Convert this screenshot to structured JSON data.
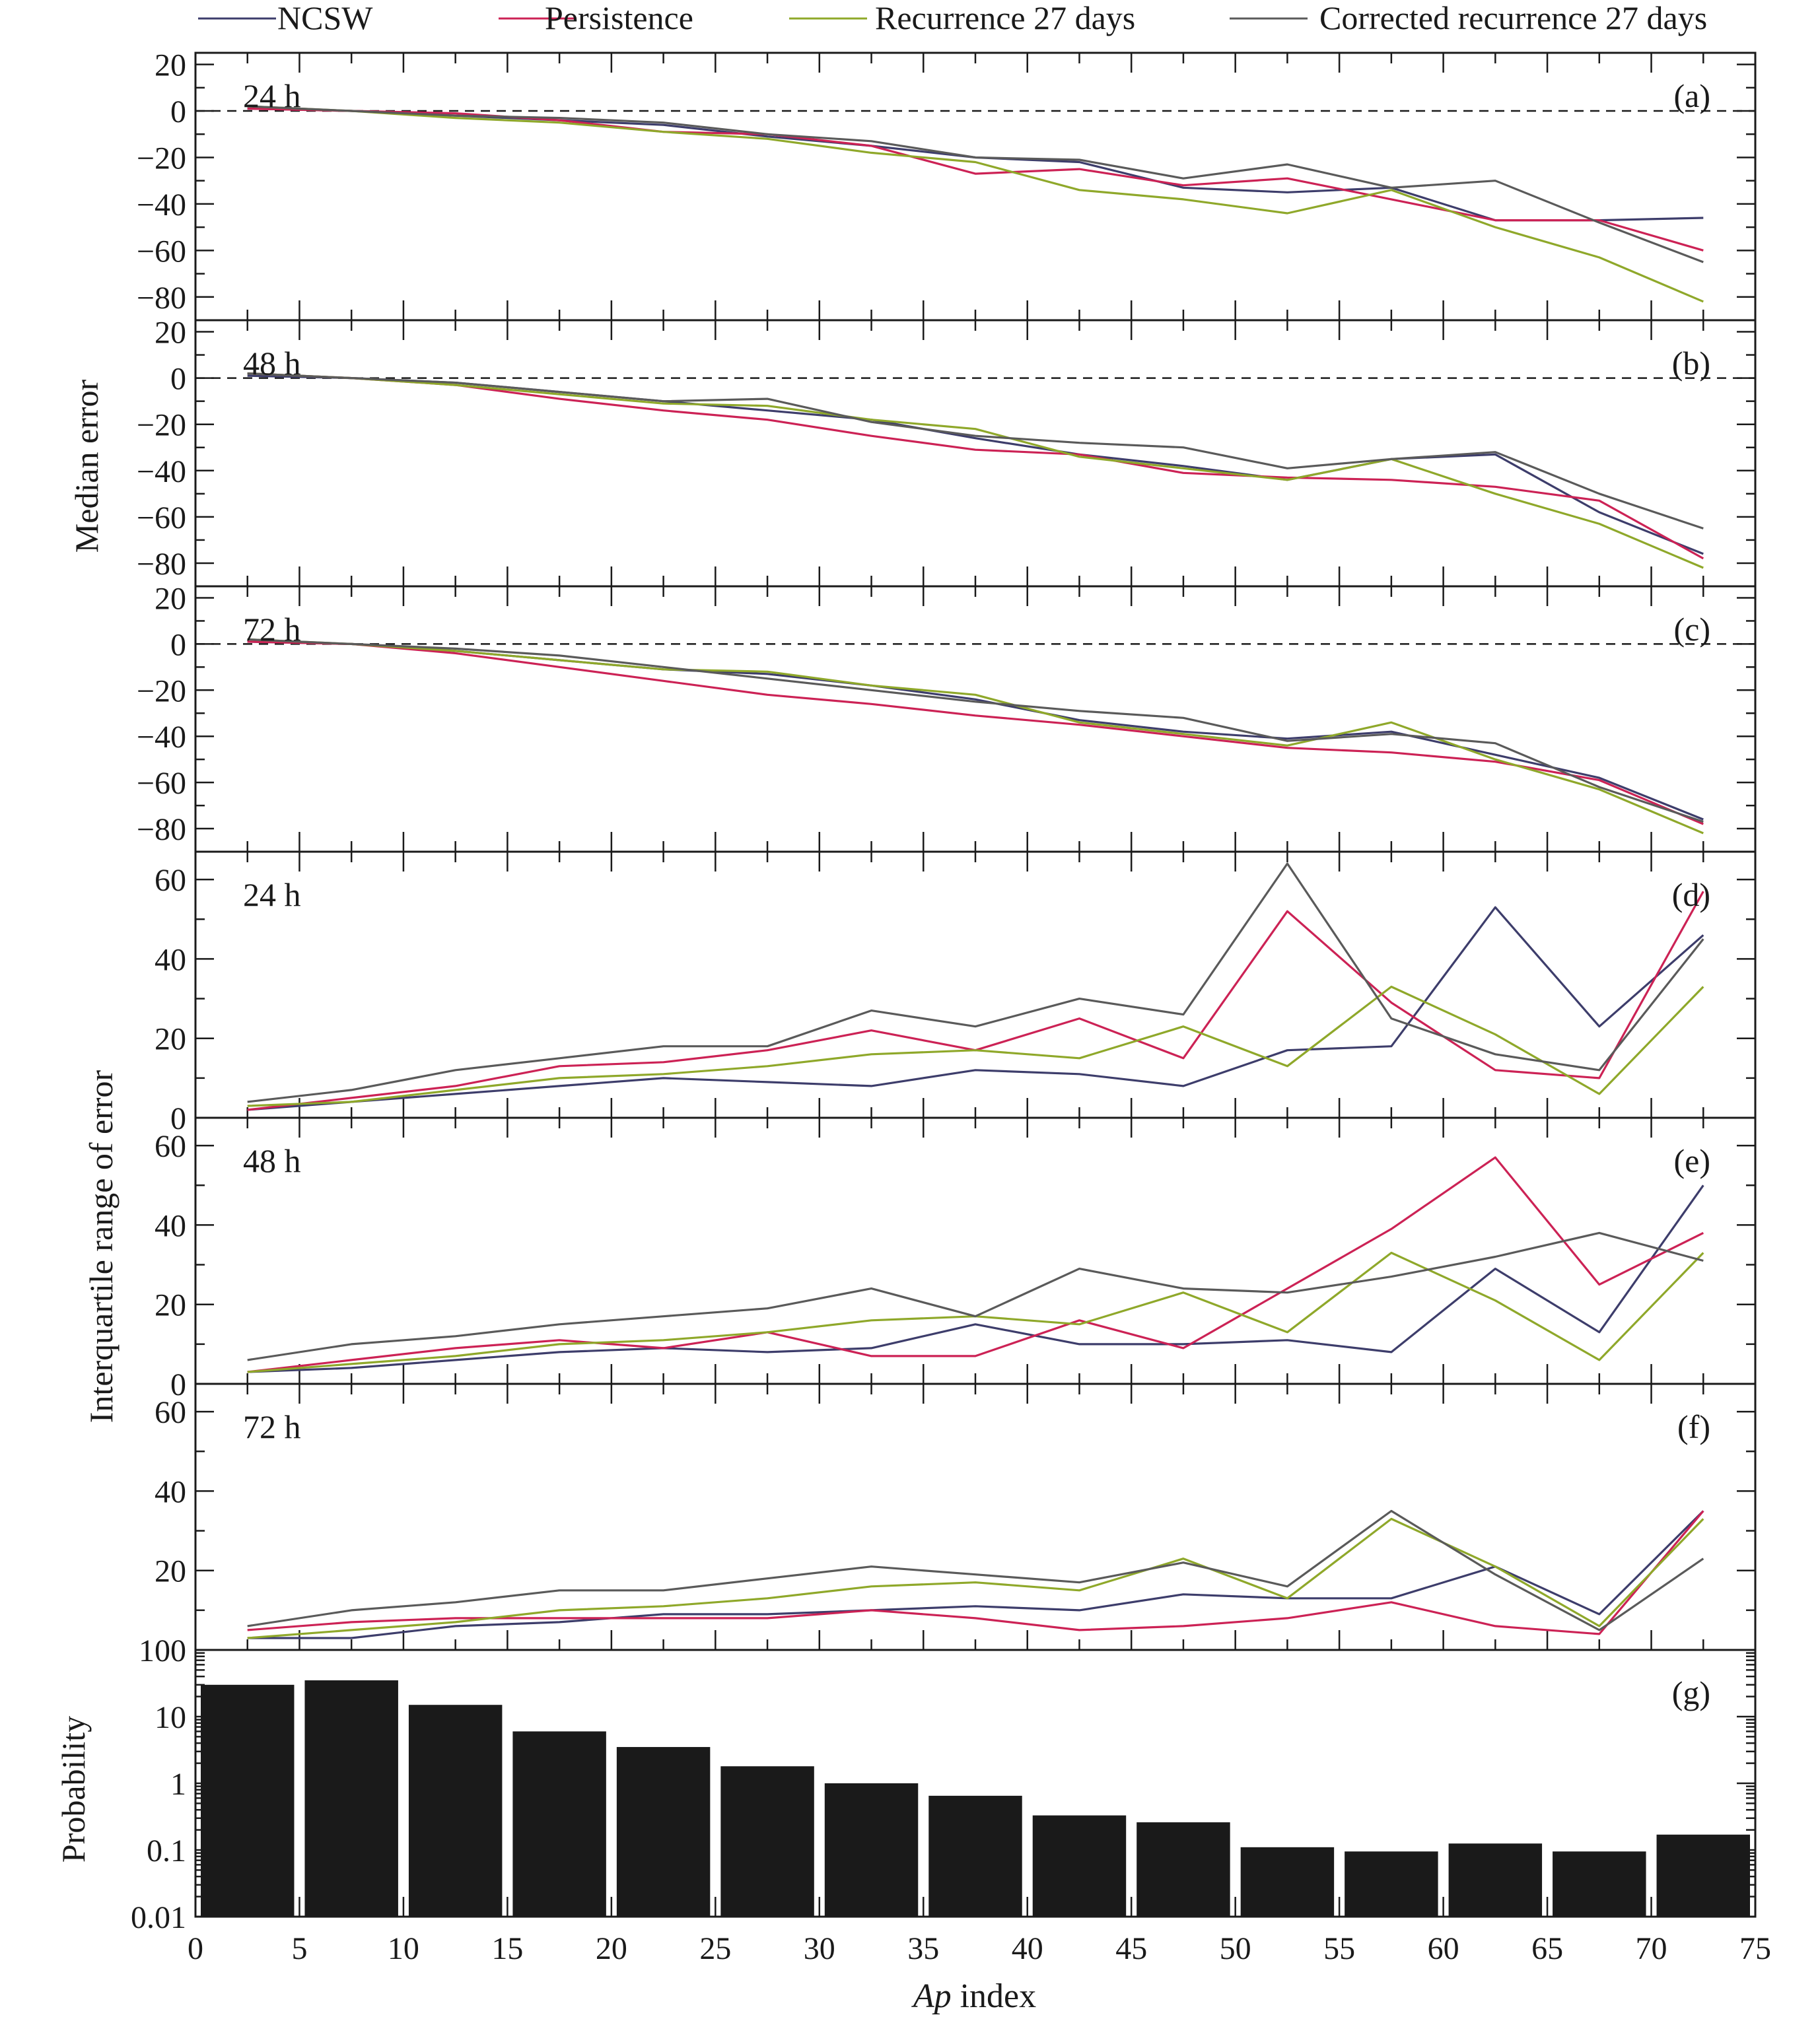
{
  "legend": [
    {
      "label": "NCSW",
      "color": "#3d3d6b"
    },
    {
      "label": "Persistence",
      "color": "#cc2255"
    },
    {
      "label": "Recurrence 27 days",
      "color": "#8fa82a"
    },
    {
      "label": "Corrected recurrence 27 days",
      "color": "#5a5a5a"
    }
  ],
  "labels": {
    "median_ylabel": "Median error",
    "iqr_ylabel": "Interquartile range of error",
    "prob_ylabel": "Probability",
    "xlabel_italic": "Ap",
    "xlabel_rest": " index"
  },
  "chart_data": [
    {
      "type": "line",
      "panel": "(a)",
      "horizon": "24 h",
      "x": [
        2.5,
        7.5,
        12.5,
        17.5,
        22.5,
        27.5,
        32.5,
        37.5,
        42.5,
        47.5,
        52.5,
        57.5,
        62.5,
        67.5,
        72.5
      ],
      "ylim": [
        -90,
        25
      ],
      "yticks": [
        20,
        0,
        -20,
        -40,
        -60,
        -80
      ],
      "zero_line": "dashed",
      "series": [
        {
          "name": "NCSW",
          "color": "#3d3d6b",
          "values": [
            1,
            0,
            -2,
            -4,
            -6,
            -11,
            -15,
            -20,
            -22,
            -33,
            -35,
            -33,
            -47,
            -47,
            -46
          ]
        },
        {
          "name": "Persistence",
          "color": "#cc2255",
          "values": [
            1,
            0,
            -1,
            -4,
            -9,
            -10,
            -15,
            -27,
            -25,
            -32,
            -29,
            -38,
            -47,
            -47,
            -60
          ]
        },
        {
          "name": "Recurrence 27 days",
          "color": "#8fa82a",
          "values": [
            2,
            0,
            -3,
            -5,
            -9,
            -12,
            -18,
            -22,
            -34,
            -38,
            -44,
            -34,
            -50,
            -63,
            -82
          ]
        },
        {
          "name": "Corrected recurrence 27 days",
          "color": "#5a5a5a",
          "values": [
            2,
            0,
            -2,
            -3,
            -5,
            -10,
            -13,
            -20,
            -21,
            -29,
            -23,
            -33,
            -30,
            -48,
            -65
          ]
        }
      ]
    },
    {
      "type": "line",
      "panel": "(b)",
      "horizon": "48 h",
      "x": [
        2.5,
        7.5,
        12.5,
        17.5,
        22.5,
        27.5,
        32.5,
        37.5,
        42.5,
        47.5,
        52.5,
        57.5,
        62.5,
        67.5,
        72.5
      ],
      "ylim": [
        -90,
        25
      ],
      "yticks": [
        20,
        0,
        -20,
        -40,
        -60,
        -80
      ],
      "zero_line": "dashed",
      "series": [
        {
          "name": "NCSW",
          "color": "#3d3d6b",
          "values": [
            1,
            0,
            -2,
            -6,
            -10,
            -14,
            -18,
            -26,
            -33,
            -38,
            -44,
            -35,
            -33,
            -58,
            -76
          ]
        },
        {
          "name": "Persistence",
          "color": "#cc2255",
          "values": [
            2,
            0,
            -3,
            -9,
            -14,
            -18,
            -25,
            -31,
            -33,
            -41,
            -43,
            -44,
            -47,
            -53,
            -78
          ]
        },
        {
          "name": "Recurrence 27 days",
          "color": "#8fa82a",
          "values": [
            2,
            0,
            -3,
            -7,
            -11,
            -12,
            -18,
            -22,
            -34,
            -39,
            -44,
            -35,
            -50,
            -63,
            -82
          ]
        },
        {
          "name": "Corrected recurrence 27 days",
          "color": "#5a5a5a",
          "values": [
            2,
            0,
            -2,
            -6,
            -10,
            -9,
            -19,
            -25,
            -28,
            -30,
            -39,
            -35,
            -32,
            -50,
            -65
          ]
        }
      ]
    },
    {
      "type": "line",
      "panel": "(c)",
      "horizon": "72 h",
      "x": [
        2.5,
        7.5,
        12.5,
        17.5,
        22.5,
        27.5,
        32.5,
        37.5,
        42.5,
        47.5,
        52.5,
        57.5,
        62.5,
        67.5,
        72.5
      ],
      "ylim": [
        -90,
        25
      ],
      "yticks": [
        20,
        0,
        -20,
        -40,
        -60,
        -80
      ],
      "zero_line": "dashed",
      "series": [
        {
          "name": "NCSW",
          "color": "#3d3d6b",
          "values": [
            1,
            0,
            -3,
            -7,
            -11,
            -13,
            -18,
            -24,
            -33,
            -38,
            -41,
            -38,
            -48,
            -58,
            -76
          ]
        },
        {
          "name": "Persistence",
          "color": "#cc2255",
          "values": [
            1,
            0,
            -4,
            -10,
            -16,
            -22,
            -26,
            -31,
            -35,
            -40,
            -45,
            -47,
            -51,
            -59,
            -78
          ]
        },
        {
          "name": "Recurrence 27 days",
          "color": "#8fa82a",
          "values": [
            2,
            0,
            -3,
            -7,
            -11,
            -12,
            -18,
            -22,
            -34,
            -39,
            -44,
            -34,
            -50,
            -63,
            -82
          ]
        },
        {
          "name": "Corrected recurrence 27 days",
          "color": "#5a5a5a",
          "values": [
            2,
            0,
            -2,
            -5,
            -10,
            -15,
            -20,
            -25,
            -29,
            -32,
            -42,
            -39,
            -43,
            -62,
            -77
          ]
        }
      ]
    },
    {
      "type": "line",
      "panel": "(d)",
      "horizon": "24 h",
      "x": [
        2.5,
        7.5,
        12.5,
        17.5,
        22.5,
        27.5,
        32.5,
        37.5,
        42.5,
        47.5,
        52.5,
        57.5,
        62.5,
        67.5,
        72.5
      ],
      "ylim": [
        0,
        67
      ],
      "yticks": [
        0,
        20,
        40,
        60
      ],
      "series": [
        {
          "name": "NCSW",
          "color": "#3d3d6b",
          "values": [
            2,
            4,
            6,
            8,
            10,
            9,
            8,
            12,
            11,
            8,
            17,
            18,
            53,
            23,
            46
          ]
        },
        {
          "name": "Persistence",
          "color": "#cc2255",
          "values": [
            2,
            5,
            8,
            13,
            14,
            17,
            22,
            17,
            25,
            15,
            52,
            29,
            12,
            10,
            57
          ]
        },
        {
          "name": "Recurrence 27 days",
          "color": "#8fa82a",
          "values": [
            3,
            4,
            7,
            10,
            11,
            13,
            16,
            17,
            15,
            23,
            13,
            33,
            21,
            6,
            33
          ]
        },
        {
          "name": "Corrected recurrence 27 days",
          "color": "#5a5a5a",
          "values": [
            4,
            7,
            12,
            15,
            18,
            18,
            27,
            23,
            30,
            26,
            64,
            25,
            16,
            12,
            45
          ]
        }
      ]
    },
    {
      "type": "line",
      "panel": "(e)",
      "horizon": "48 h",
      "x": [
        2.5,
        7.5,
        12.5,
        17.5,
        22.5,
        27.5,
        32.5,
        37.5,
        42.5,
        47.5,
        52.5,
        57.5,
        62.5,
        67.5,
        72.5
      ],
      "ylim": [
        0,
        67
      ],
      "yticks": [
        0,
        20,
        40,
        60
      ],
      "series": [
        {
          "name": "NCSW",
          "color": "#3d3d6b",
          "values": [
            3,
            4,
            6,
            8,
            9,
            8,
            9,
            15,
            10,
            10,
            11,
            8,
            29,
            13,
            50
          ]
        },
        {
          "name": "Persistence",
          "color": "#cc2255",
          "values": [
            3,
            6,
            9,
            11,
            9,
            13,
            7,
            7,
            16,
            9,
            24,
            39,
            57,
            25,
            38
          ]
        },
        {
          "name": "Recurrence 27 days",
          "color": "#8fa82a",
          "values": [
            3,
            5,
            7,
            10,
            11,
            13,
            16,
            17,
            15,
            23,
            13,
            33,
            21,
            6,
            33
          ]
        },
        {
          "name": "Corrected recurrence 27 days",
          "color": "#5a5a5a",
          "values": [
            6,
            10,
            12,
            15,
            17,
            19,
            24,
            17,
            29,
            24,
            23,
            27,
            32,
            38,
            31
          ]
        }
      ]
    },
    {
      "type": "line",
      "panel": "(f)",
      "horizon": "72 h",
      "x": [
        2.5,
        7.5,
        12.5,
        17.5,
        22.5,
        27.5,
        32.5,
        37.5,
        42.5,
        47.5,
        52.5,
        57.5,
        62.5,
        67.5,
        72.5
      ],
      "ylim": [
        0,
        67
      ],
      "yticks": [
        20,
        40,
        60
      ],
      "series": [
        {
          "name": "NCSW",
          "color": "#3d3d6b",
          "values": [
            3,
            3,
            6,
            7,
            9,
            9,
            10,
            11,
            10,
            14,
            13,
            13,
            21,
            9,
            35
          ]
        },
        {
          "name": "Persistence",
          "color": "#cc2255",
          "values": [
            5,
            7,
            8,
            8,
            8,
            8,
            10,
            8,
            5,
            6,
            8,
            12,
            6,
            4,
            35
          ]
        },
        {
          "name": "Recurrence 27 days",
          "color": "#8fa82a",
          "values": [
            3,
            5,
            7,
            10,
            11,
            13,
            16,
            17,
            15,
            23,
            13,
            33,
            21,
            6,
            33
          ]
        },
        {
          "name": "Corrected recurrence 27 days",
          "color": "#5a5a5a",
          "values": [
            6,
            10,
            12,
            15,
            15,
            18,
            21,
            19,
            17,
            22,
            16,
            35,
            19,
            5,
            23
          ]
        }
      ]
    },
    {
      "type": "bar",
      "panel": "(g)",
      "scale": "log",
      "bin_width": 5,
      "bins_start": [
        0,
        5,
        10,
        15,
        20,
        25,
        30,
        35,
        40,
        45,
        50,
        55,
        60,
        65,
        70
      ],
      "values": [
        30,
        35,
        15,
        6,
        3.5,
        1.8,
        1.0,
        0.65,
        0.33,
        0.26,
        0.11,
        0.095,
        0.125,
        0.095,
        0.17
      ],
      "ylim": [
        0.01,
        100
      ],
      "yticks": [
        "100",
        "10",
        "1",
        "0.1",
        "0.01"
      ],
      "color": "#1a1a1a"
    }
  ],
  "x_axis": {
    "ticks": [
      "0",
      "5",
      "10",
      "15",
      "20",
      "25",
      "30",
      "35",
      "40",
      "45",
      "50",
      "55",
      "60",
      "65",
      "70",
      "75"
    ],
    "xlim": [
      0,
      75
    ]
  }
}
